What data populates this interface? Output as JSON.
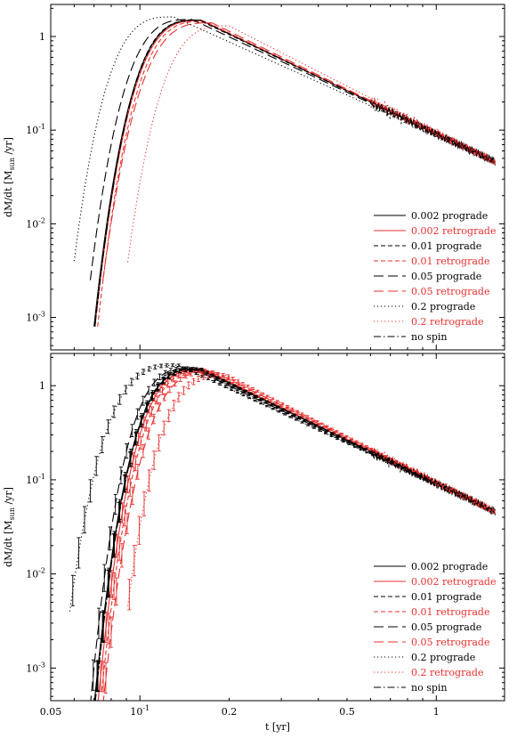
{
  "chart_data": [
    {
      "type": "line",
      "panel": "top",
      "xscale": "log",
      "yscale": "log",
      "xlim": [
        0.05,
        1.7
      ],
      "ylim": [
        0.00045,
        2.2
      ],
      "ylabel_main": "dM/dt [M",
      "ylabel_sub": "sun",
      "ylabel_tail": " /yr]",
      "xlabel": "",
      "xticks": [],
      "yticks": [
        {
          "value": 1,
          "base": "1",
          "exp": ""
        },
        {
          "value": 0.1,
          "base": "10",
          "exp": "-1"
        },
        {
          "value": 0.01,
          "base": "10",
          "exp": "-2"
        },
        {
          "value": 0.001,
          "base": "10",
          "exp": "-3"
        }
      ],
      "legend_position": "lower-right",
      "series": [
        {
          "name": "0.002 prograde",
          "color": "#000000",
          "dash": "solid",
          "t0": 0.07,
          "tp": 0.16,
          "peak": 1.5,
          "y0": 0.0008
        },
        {
          "name": "0.002 retrograde",
          "color": "#e8312f",
          "dash": "solid",
          "t0": 0.0705,
          "tp": 0.162,
          "peak": 1.48,
          "y0": 0.0008
        },
        {
          "name": "0.01 prograde",
          "color": "#000000",
          "dash": "short",
          "t0": 0.0705,
          "tp": 0.158,
          "peak": 1.5,
          "y0": 0.0008
        },
        {
          "name": "0.01 retrograde",
          "color": "#e8312f",
          "dash": "short",
          "t0": 0.072,
          "tp": 0.166,
          "peak": 1.45,
          "y0": 0.0008
        },
        {
          "name": "0.05 prograde",
          "color": "#000000",
          "dash": "long",
          "t0": 0.068,
          "tp": 0.15,
          "peak": 1.52,
          "y0": 0.0025
        },
        {
          "name": "0.05 retrograde",
          "color": "#e8312f",
          "dash": "long",
          "t0": 0.075,
          "tp": 0.175,
          "peak": 1.4,
          "y0": 0.0025
        },
        {
          "name": "0.2 prograde",
          "color": "#000000",
          "dash": "dot",
          "t0": 0.06,
          "tp": 0.13,
          "peak": 1.62,
          "y0": 0.004
        },
        {
          "name": "0.2 retrograde",
          "color": "#e8312f",
          "dash": "dot",
          "t0": 0.09,
          "tp": 0.2,
          "peak": 1.3,
          "y0": 0.003
        },
        {
          "name": "no spin",
          "color": "#000000",
          "dash": "dashdot",
          "t0": 0.0705,
          "tp": 0.16,
          "peak": 1.5,
          "y0": 0.0008
        }
      ],
      "late_time": {
        "t": 1.6,
        "value": 0.045
      }
    },
    {
      "type": "line",
      "panel": "bottom",
      "xscale": "log",
      "yscale": "log",
      "xlim": [
        0.05,
        1.7
      ],
      "ylim": [
        0.00045,
        2.2
      ],
      "ylabel_main": "dM/dt [M",
      "ylabel_sub": "sun",
      "ylabel_tail": " /yr]",
      "xlabel": "t [yr]",
      "xticks": [
        {
          "value": 0.05,
          "base": "0.05",
          "exp": ""
        },
        {
          "value": 0.1,
          "base": "10",
          "exp": "-1"
        },
        {
          "value": 0.2,
          "base": "0.2",
          "exp": ""
        },
        {
          "value": 0.5,
          "base": "0.5",
          "exp": ""
        },
        {
          "value": 1,
          "base": "1",
          "exp": ""
        }
      ],
      "yticks": [
        {
          "value": 1,
          "base": "1",
          "exp": ""
        },
        {
          "value": 0.1,
          "base": "10",
          "exp": "-1"
        },
        {
          "value": 0.01,
          "base": "10",
          "exp": "-2"
        },
        {
          "value": 0.001,
          "base": "10",
          "exp": "-3"
        }
      ],
      "legend_position": "lower-right",
      "error_bars": true,
      "series": [
        {
          "name": "0.002 prograde",
          "color": "#000000",
          "dash": "solid",
          "t0": 0.07,
          "tp": 0.16,
          "peak": 1.5,
          "y0": 0.0004
        },
        {
          "name": "0.002 retrograde",
          "color": "#e8312f",
          "dash": "solid",
          "t0": 0.072,
          "tp": 0.163,
          "peak": 1.47,
          "y0": 0.0004
        },
        {
          "name": "0.01 prograde",
          "color": "#000000",
          "dash": "short",
          "t0": 0.0705,
          "tp": 0.158,
          "peak": 1.5,
          "y0": 0.0004
        },
        {
          "name": "0.01 retrograde",
          "color": "#e8312f",
          "dash": "short",
          "t0": 0.0735,
          "tp": 0.168,
          "peak": 1.44,
          "y0": 0.0004
        },
        {
          "name": "0.05 prograde",
          "color": "#000000",
          "dash": "long",
          "t0": 0.068,
          "tp": 0.15,
          "peak": 1.53,
          "y0": 0.0004
        },
        {
          "name": "0.05 retrograde",
          "color": "#e8312f",
          "dash": "long",
          "t0": 0.075,
          "tp": 0.178,
          "peak": 1.4,
          "y0": 0.0004
        },
        {
          "name": "0.2 prograde",
          "color": "#000000",
          "dash": "dot",
          "t0": 0.058,
          "tp": 0.135,
          "peak": 1.65,
          "y0": 0.004
        },
        {
          "name": "0.2 retrograde",
          "color": "#e8312f",
          "dash": "dot",
          "t0": 0.09,
          "tp": 0.195,
          "peak": 1.3,
          "y0": 0.0035
        },
        {
          "name": "no spin",
          "color": "#000000",
          "dash": "dashdot",
          "t0": 0.0705,
          "tp": 0.16,
          "peak": 1.5,
          "y0": 0.0004
        }
      ],
      "late_time": {
        "t": 1.6,
        "value": 0.045
      }
    }
  ]
}
